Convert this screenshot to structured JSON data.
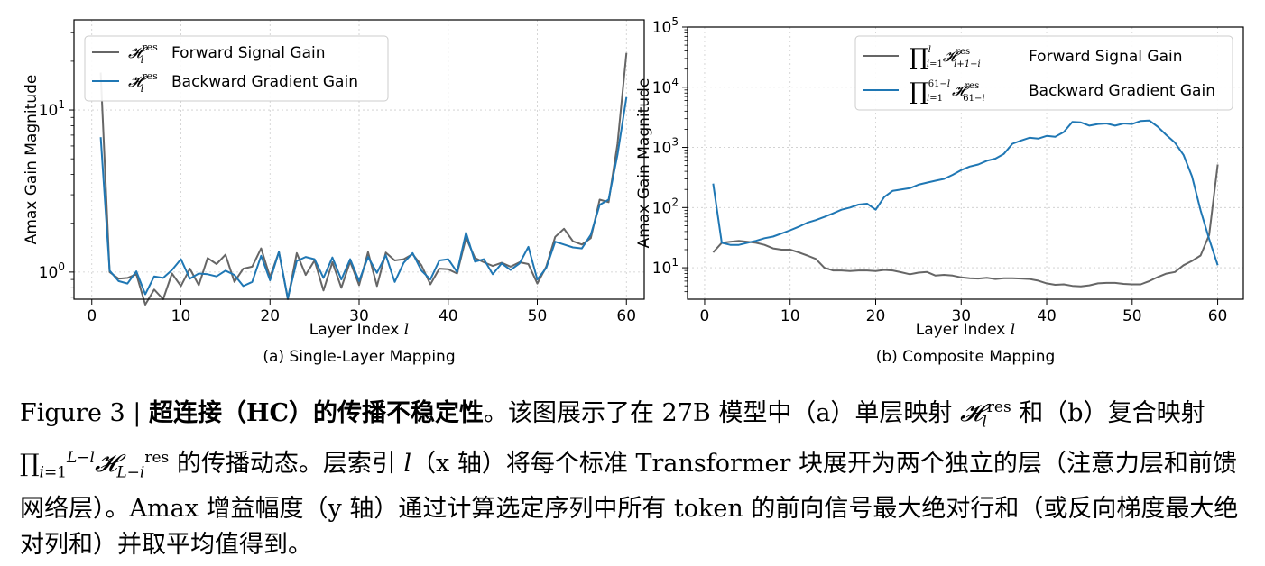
{
  "chart_data": [
    {
      "type": "line",
      "title": "(a) Single-Layer Mapping",
      "xlabel": "Layer Index l",
      "ylabel": "Amax Gain Magnitude",
      "yscale": "log",
      "xlim": [
        -2,
        62
      ],
      "ylim": [
        0.68,
        36
      ],
      "xticks": [
        0,
        10,
        20,
        30,
        40,
        50,
        60
      ],
      "yticks": [
        {
          "value": 1,
          "label": "10^0"
        },
        {
          "value": 10,
          "label": "10^1"
        }
      ],
      "grid": true,
      "legend_position": "top-left",
      "series": [
        {
          "name": "H_l^res Forward Signal Gain",
          "color": "#666666",
          "x": [
            1,
            2,
            3,
            4,
            5,
            6,
            7,
            8,
            9,
            10,
            11,
            12,
            13,
            14,
            15,
            16,
            17,
            18,
            19,
            20,
            21,
            22,
            23,
            24,
            25,
            26,
            27,
            28,
            29,
            30,
            31,
            32,
            33,
            34,
            35,
            36,
            37,
            38,
            39,
            40,
            41,
            42,
            43,
            44,
            45,
            46,
            47,
            48,
            49,
            50,
            51,
            52,
            53,
            54,
            55,
            56,
            57,
            58,
            59,
            60
          ],
          "values": [
            17.0,
            1.0,
            0.91,
            0.92,
            0.97,
            0.63,
            0.78,
            0.68,
            0.98,
            0.82,
            1.05,
            0.83,
            1.22,
            1.12,
            1.28,
            0.87,
            1.05,
            1.08,
            1.4,
            0.93,
            1.33,
            0.68,
            1.31,
            0.96,
            1.18,
            0.77,
            1.15,
            0.8,
            1.16,
            0.83,
            1.33,
            0.82,
            1.32,
            1.18,
            1.2,
            1.29,
            1.1,
            0.84,
            1.05,
            1.04,
            0.98,
            1.63,
            1.22,
            1.15,
            1.09,
            1.14,
            1.08,
            1.15,
            1.12,
            0.85,
            1.08,
            1.65,
            1.85,
            1.55,
            1.48,
            1.62,
            2.8,
            2.7,
            6.2,
            22.5
          ]
        },
        {
          "name": "H_l^res Backward Gradient Gain",
          "color": "#1f77b4",
          "x": [
            1,
            2,
            3,
            4,
            5,
            6,
            7,
            8,
            9,
            10,
            11,
            12,
            13,
            14,
            15,
            16,
            17,
            18,
            19,
            20,
            21,
            22,
            23,
            24,
            25,
            26,
            27,
            28,
            29,
            30,
            31,
            32,
            33,
            34,
            35,
            36,
            37,
            38,
            39,
            40,
            41,
            42,
            43,
            44,
            45,
            46,
            47,
            48,
            49,
            50,
            51,
            52,
            53,
            54,
            55,
            56,
            57,
            58,
            59,
            60
          ],
          "values": [
            6.8,
            1.02,
            0.88,
            0.85,
            1.01,
            0.73,
            0.94,
            0.92,
            1.03,
            1.2,
            0.91,
            0.98,
            0.97,
            0.94,
            1.02,
            0.96,
            0.82,
            0.87,
            1.26,
            0.89,
            1.33,
            0.69,
            1.17,
            1.24,
            1.2,
            0.92,
            1.23,
            0.9,
            1.2,
            0.88,
            1.24,
            0.99,
            1.27,
            0.87,
            1.14,
            1.31,
            1.02,
            0.9,
            1.18,
            1.2,
            1.0,
            1.75,
            1.16,
            1.2,
            0.97,
            1.13,
            1.03,
            1.13,
            1.43,
            0.9,
            1.06,
            1.54,
            1.48,
            1.42,
            1.4,
            1.7,
            2.6,
            2.8,
            5.3,
            12.0
          ]
        }
      ]
    },
    {
      "type": "line",
      "title": "(b) Composite Mapping",
      "xlabel": "Layer Index l",
      "ylabel": "Amax Gain Magnitude",
      "yscale": "log",
      "xlim": [
        -2,
        63
      ],
      "ylim": [
        3.0,
        100000
      ],
      "xticks": [
        0,
        10,
        20,
        30,
        40,
        50,
        60
      ],
      "yticks": [
        {
          "value": 10,
          "label": "10^1"
        },
        {
          "value": 100,
          "label": "10^2"
        },
        {
          "value": 1000,
          "label": "10^3"
        },
        {
          "value": 10000,
          "label": "10^4"
        },
        {
          "value": 100000,
          "label": "10^5"
        }
      ],
      "grid": true,
      "legend_position": "top-right",
      "series": [
        {
          "name": "∏_{i=1}^{l} H_{l+1-i}^res Forward Signal Gain",
          "color": "#666666",
          "x": [
            1,
            2,
            3,
            4,
            5,
            6,
            7,
            8,
            9,
            10,
            11,
            12,
            13,
            14,
            15,
            16,
            17,
            18,
            19,
            20,
            21,
            22,
            23,
            24,
            25,
            26,
            27,
            28,
            29,
            30,
            31,
            32,
            33,
            34,
            35,
            36,
            37,
            38,
            39,
            40,
            41,
            42,
            43,
            44,
            45,
            46,
            47,
            48,
            49,
            50,
            51,
            52,
            53,
            54,
            55,
            56,
            57,
            58,
            59,
            60
          ],
          "values": [
            18,
            26,
            27,
            28,
            27,
            26,
            24,
            21,
            20,
            20,
            18,
            16,
            14,
            10,
            9,
            9,
            8.8,
            9,
            9,
            8.8,
            9.2,
            9,
            8.4,
            7.8,
            8.3,
            8.5,
            7.4,
            7.6,
            7.4,
            6.9,
            6.7,
            6.6,
            6.8,
            6.5,
            6.7,
            6.7,
            6.6,
            6.5,
            6.1,
            5.5,
            5.2,
            5.3,
            5.0,
            4.9,
            5.1,
            5.5,
            5.6,
            5.6,
            5.4,
            5.3,
            5.3,
            6,
            7,
            8,
            8.5,
            11,
            13,
            16,
            35,
            520
          ]
        },
        {
          "name": "∏_{i=1}^{61-l} H_{61-i}^res Backward Gradient Gain",
          "color": "#1f77b4",
          "x": [
            1,
            2,
            3,
            4,
            5,
            6,
            7,
            8,
            9,
            10,
            11,
            12,
            13,
            14,
            15,
            16,
            17,
            18,
            19,
            20,
            21,
            22,
            23,
            24,
            25,
            26,
            27,
            28,
            29,
            30,
            31,
            32,
            33,
            34,
            35,
            36,
            37,
            38,
            39,
            40,
            41,
            42,
            43,
            44,
            45,
            46,
            47,
            48,
            49,
            50,
            51,
            52,
            53,
            54,
            55,
            56,
            57,
            58,
            59,
            60
          ],
          "values": [
            250,
            26,
            24,
            24,
            26,
            28,
            31,
            33,
            37,
            42,
            48,
            56,
            62,
            70,
            80,
            92,
            100,
            112,
            116,
            92,
            150,
            190,
            200,
            210,
            240,
            260,
            280,
            300,
            350,
            420,
            480,
            520,
            600,
            650,
            780,
            1150,
            1300,
            1450,
            1400,
            1550,
            1500,
            1800,
            2650,
            2600,
            2300,
            2450,
            2500,
            2300,
            2500,
            2450,
            2750,
            2800,
            2200,
            1600,
            1200,
            750,
            330,
            90,
            30,
            11
          ]
        }
      ]
    }
  ],
  "legend_a": {
    "forward_label": "Forward Signal Gain",
    "backward_label": "Backward Gradient Gain"
  },
  "legend_b": {
    "forward_label": "Forward Signal Gain",
    "backward_label": "Backward Gradient Gain"
  },
  "caption": {
    "prefix": "Figure 3 | ",
    "bold": "超连接（HC）的传播不稳定性",
    "part1": "。该图展示了在 27B 模型中（a）单层映射 ",
    "part2": " 和（b）复合映射 ",
    "part3": " 的传播动态。层索引 ",
    "part4": "（x 轴）将每个标准 Transformer 块展开为两个独立的层（注意力层和前馈网络层）。Amax 增益幅度（y 轴）通过计算选定序列中所有 token 的前向信号最大绝对行和（或反向梯度最大绝对列和）并取平均值得到。"
  }
}
